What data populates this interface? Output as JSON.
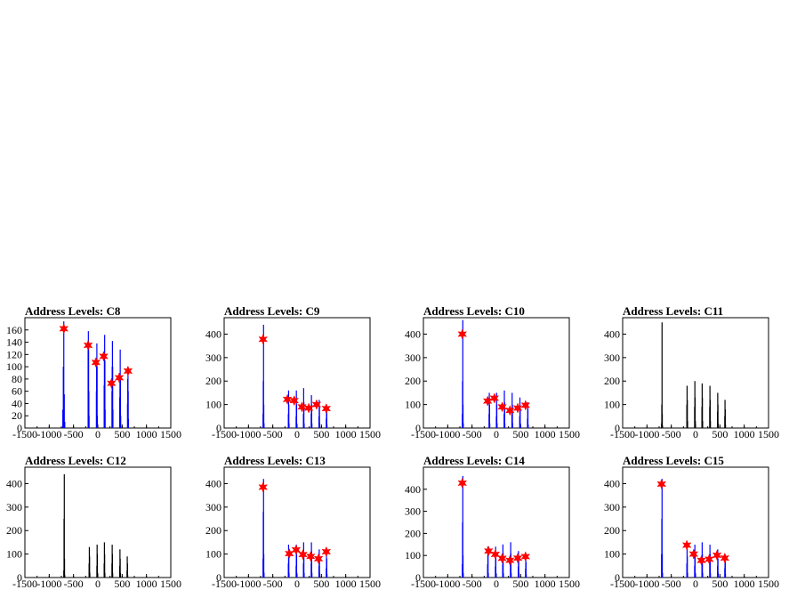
{
  "chart_data": [
    {
      "type": "histogram",
      "title": "Address Levels: C8",
      "xlim": [
        -1500,
        1500
      ],
      "ylim": [
        0,
        180
      ],
      "xticks": [
        "-1500",
        "-1000",
        "-500",
        "0",
        "500",
        "1000",
        "1500"
      ],
      "yticks": [
        "0",
        "20",
        "40",
        "60",
        "80",
        "100",
        "120",
        "140",
        "160"
      ],
      "series": [
        {
          "color": "#0000ff",
          "style": "spikes",
          "x": [
            -720,
            -710,
            -700,
            -690,
            -680,
            -200,
            -195,
            -190,
            -185,
            -180,
            -30,
            -25,
            -20,
            -15,
            -10,
            130,
            135,
            140,
            145,
            150,
            290,
            295,
            300,
            305,
            310,
            450,
            455,
            460,
            465,
            470,
            610,
            615,
            620,
            625,
            630
          ],
          "y": [
            30,
            100,
            174,
            55,
            10,
            130,
            158,
            130,
            60,
            20,
            60,
            110,
            138,
            100,
            20,
            70,
            120,
            152,
            110,
            30,
            60,
            100,
            142,
            100,
            30,
            50,
            90,
            128,
            80,
            20,
            40,
            80,
            100,
            60,
            15
          ]
        }
      ],
      "markers": {
        "color": "#ff0000",
        "symbol": "star",
        "x": [
          -700,
          -200,
          -40,
          120,
          280,
          440,
          620
        ],
        "y": [
          162,
          135,
          107,
          117,
          73,
          82,
          93
        ]
      }
    },
    {
      "type": "histogram",
      "title": "Address Levels: C9",
      "xlim": [
        -1500,
        1500
      ],
      "ylim": [
        0,
        470
      ],
      "xticks": [
        "-1500",
        "-1000",
        "-500",
        "0",
        "500",
        "1000",
        "1500"
      ],
      "yticks": [
        "0",
        "100",
        "200",
        "300",
        "400"
      ],
      "series": [
        {
          "color": "#0000ff",
          "style": "spikes",
          "x": [
            -700,
            -695,
            -690,
            -685,
            -680,
            -180,
            -175,
            -170,
            -165,
            -20,
            -15,
            -10,
            -5,
            130,
            135,
            140,
            145,
            290,
            295,
            300,
            305,
            450,
            455,
            460,
            465,
            600,
            605,
            610,
            615
          ],
          "y": [
            60,
            200,
            440,
            100,
            20,
            60,
            160,
            100,
            20,
            50,
            160,
            100,
            20,
            60,
            170,
            110,
            20,
            60,
            140,
            100,
            20,
            50,
            120,
            90,
            20,
            40,
            100,
            70,
            15
          ]
        }
      ],
      "markers": {
        "color": "#ff0000",
        "symbol": "star",
        "x": [
          -700,
          -200,
          -60,
          100,
          240,
          400,
          600
        ],
        "y": [
          378,
          122,
          117,
          90,
          85,
          100,
          83
        ]
      }
    },
    {
      "type": "histogram",
      "title": "Address Levels: C10",
      "xlim": [
        -1500,
        1500
      ],
      "ylim": [
        0,
        470
      ],
      "xticks": [
        "-1500",
        "-1000",
        "-500",
        "0",
        "500",
        "1000",
        "1500"
      ],
      "yticks": [
        "0",
        "100",
        "200",
        "300",
        "400"
      ],
      "series": [
        {
          "color": "#0000ff",
          "style": "spikes",
          "x": [
            -700,
            -695,
            -690,
            -685,
            -680,
            -150,
            -145,
            -140,
            -135,
            0,
            5,
            10,
            15,
            160,
            165,
            170,
            175,
            320,
            325,
            330,
            335,
            480,
            485,
            490,
            495,
            640,
            645,
            650,
            655
          ],
          "y": [
            60,
            200,
            460,
            100,
            20,
            60,
            150,
            100,
            20,
            50,
            150,
            100,
            20,
            60,
            160,
            110,
            20,
            60,
            150,
            100,
            20,
            50,
            130,
            90,
            20,
            40,
            110,
            80,
            15
          ]
        }
      ],
      "markers": {
        "color": "#ff0000",
        "symbol": "star",
        "x": [
          -700,
          -180,
          -40,
          120,
          280,
          440,
          600
        ],
        "y": [
          400,
          115,
          127,
          90,
          75,
          85,
          97
        ]
      }
    },
    {
      "type": "histogram",
      "title": "Address Levels: C11",
      "xlim": [
        -1500,
        1500
      ],
      "ylim": [
        0,
        470
      ],
      "xticks": [
        "-1500",
        "-1000",
        "-500",
        "0",
        "500",
        "1000",
        "1500"
      ],
      "yticks": [
        "0",
        "100",
        "200",
        "300",
        "400"
      ],
      "series": [
        {
          "color": "#000000",
          "style": "spikes",
          "x": [
            -700,
            -695,
            -690,
            -685,
            -680,
            -180,
            -175,
            -170,
            -165,
            -20,
            -15,
            -10,
            -5,
            130,
            135,
            140,
            145,
            290,
            295,
            300,
            305,
            450,
            455,
            460,
            465,
            600,
            605,
            610,
            615
          ],
          "y": [
            20,
            100,
            450,
            60,
            10,
            100,
            180,
            120,
            30,
            90,
            200,
            130,
            30,
            90,
            190,
            130,
            30,
            90,
            180,
            120,
            30,
            70,
            150,
            100,
            20,
            50,
            120,
            80,
            15
          ]
        }
      ]
    },
    {
      "type": "histogram",
      "title": "Address Levels: C12",
      "xlim": [
        -1500,
        1500
      ],
      "ylim": [
        0,
        470
      ],
      "xticks": [
        "-1500",
        "-1000",
        "-500",
        "0",
        "500",
        "1000",
        "1500"
      ],
      "yticks": [
        "0",
        "100",
        "200",
        "300",
        "400"
      ],
      "series": [
        {
          "color": "#000000",
          "style": "spikes",
          "x": [
            -700,
            -695,
            -690,
            -685,
            -680,
            -180,
            -175,
            -170,
            -165,
            -20,
            -15,
            -10,
            -5,
            130,
            135,
            140,
            145,
            290,
            295,
            300,
            305,
            450,
            455,
            460,
            465,
            600,
            605,
            610,
            615
          ],
          "y": [
            30,
            250,
            440,
            80,
            10,
            60,
            130,
            90,
            20,
            50,
            140,
            100,
            20,
            60,
            150,
            100,
            20,
            60,
            140,
            100,
            20,
            50,
            120,
            80,
            20,
            30,
            90,
            60,
            10
          ]
        }
      ]
    },
    {
      "type": "histogram",
      "title": "Address Levels: C13",
      "xlim": [
        -1500,
        1500
      ],
      "ylim": [
        0,
        470
      ],
      "xticks": [
        "-1500",
        "-1000",
        "-500",
        "0",
        "500",
        "1000",
        "1500"
      ],
      "yticks": [
        "0",
        "100",
        "200",
        "300",
        "400"
      ],
      "series": [
        {
          "color": "#0000ff",
          "style": "spikes",
          "x": [
            -700,
            -695,
            -690,
            -685,
            -680,
            -180,
            -175,
            -170,
            -165,
            -20,
            -15,
            -10,
            -5,
            130,
            135,
            140,
            145,
            290,
            295,
            300,
            305,
            450,
            455,
            460,
            465,
            600,
            605,
            610,
            615
          ],
          "y": [
            80,
            280,
            420,
            100,
            20,
            60,
            140,
            100,
            20,
            50,
            140,
            100,
            20,
            60,
            150,
            100,
            20,
            60,
            150,
            110,
            20,
            50,
            120,
            80,
            20,
            40,
            110,
            80,
            15
          ]
        }
      ],
      "markers": {
        "color": "#ff0000",
        "symbol": "star",
        "x": [
          -700,
          -160,
          -20,
          120,
          280,
          440,
          600
        ],
        "y": [
          385,
          102,
          118,
          98,
          90,
          80,
          110
        ]
      }
    },
    {
      "type": "histogram",
      "title": "Address Levels: C14",
      "xlim": [
        -1500,
        1500
      ],
      "ylim": [
        0,
        500
      ],
      "xticks": [
        "-1500",
        "-1000",
        "-500",
        "0",
        "500",
        "1000",
        "1500"
      ],
      "yticks": [
        "0",
        "100",
        "200",
        "300",
        "400"
      ],
      "series": [
        {
          "color": "#0000ff",
          "style": "spikes",
          "x": [
            -700,
            -695,
            -690,
            -685,
            -680,
            -180,
            -175,
            -170,
            -165,
            -20,
            -15,
            -10,
            -5,
            130,
            135,
            140,
            145,
            290,
            295,
            300,
            305,
            450,
            455,
            460,
            465,
            600,
            605,
            610,
            615
          ],
          "y": [
            60,
            250,
            460,
            100,
            20,
            60,
            140,
            100,
            20,
            50,
            140,
            100,
            20,
            60,
            150,
            110,
            20,
            60,
            160,
            110,
            20,
            50,
            120,
            80,
            20,
            40,
            100,
            70,
            15
          ]
        }
      ],
      "markers": {
        "color": "#ff0000",
        "symbol": "star",
        "x": [
          -700,
          -160,
          -20,
          120,
          280,
          440,
          600
        ],
        "y": [
          428,
          120,
          105,
          87,
          78,
          88,
          95
        ]
      }
    },
    {
      "type": "histogram",
      "title": "Address Levels: C15",
      "xlim": [
        -1500,
        1500
      ],
      "ylim": [
        0,
        470
      ],
      "xticks": [
        "-1500",
        "-1000",
        "-500",
        "0",
        "500",
        "1000",
        "1500"
      ],
      "yticks": [
        "0",
        "100",
        "200",
        "300",
        "400"
      ],
      "series": [
        {
          "color": "#0000ff",
          "style": "spikes",
          "x": [
            -700,
            -695,
            -690,
            -685,
            -680,
            -180,
            -175,
            -170,
            -165,
            -20,
            -15,
            -10,
            -5,
            130,
            135,
            140,
            145,
            290,
            295,
            300,
            305,
            450,
            455,
            460,
            465,
            600,
            605,
            610,
            615
          ],
          "y": [
            100,
            250,
            420,
            100,
            20,
            60,
            130,
            90,
            20,
            50,
            140,
            100,
            20,
            60,
            150,
            100,
            20,
            60,
            140,
            100,
            20,
            50,
            120,
            80,
            20,
            40,
            100,
            70,
            15
          ]
        }
      ],
      "markers": {
        "color": "#ff0000",
        "symbol": "star",
        "x": [
          -700,
          -180,
          -40,
          120,
          280,
          440,
          600
        ],
        "y": [
          398,
          138,
          100,
          73,
          78,
          95,
          83
        ]
      }
    }
  ]
}
